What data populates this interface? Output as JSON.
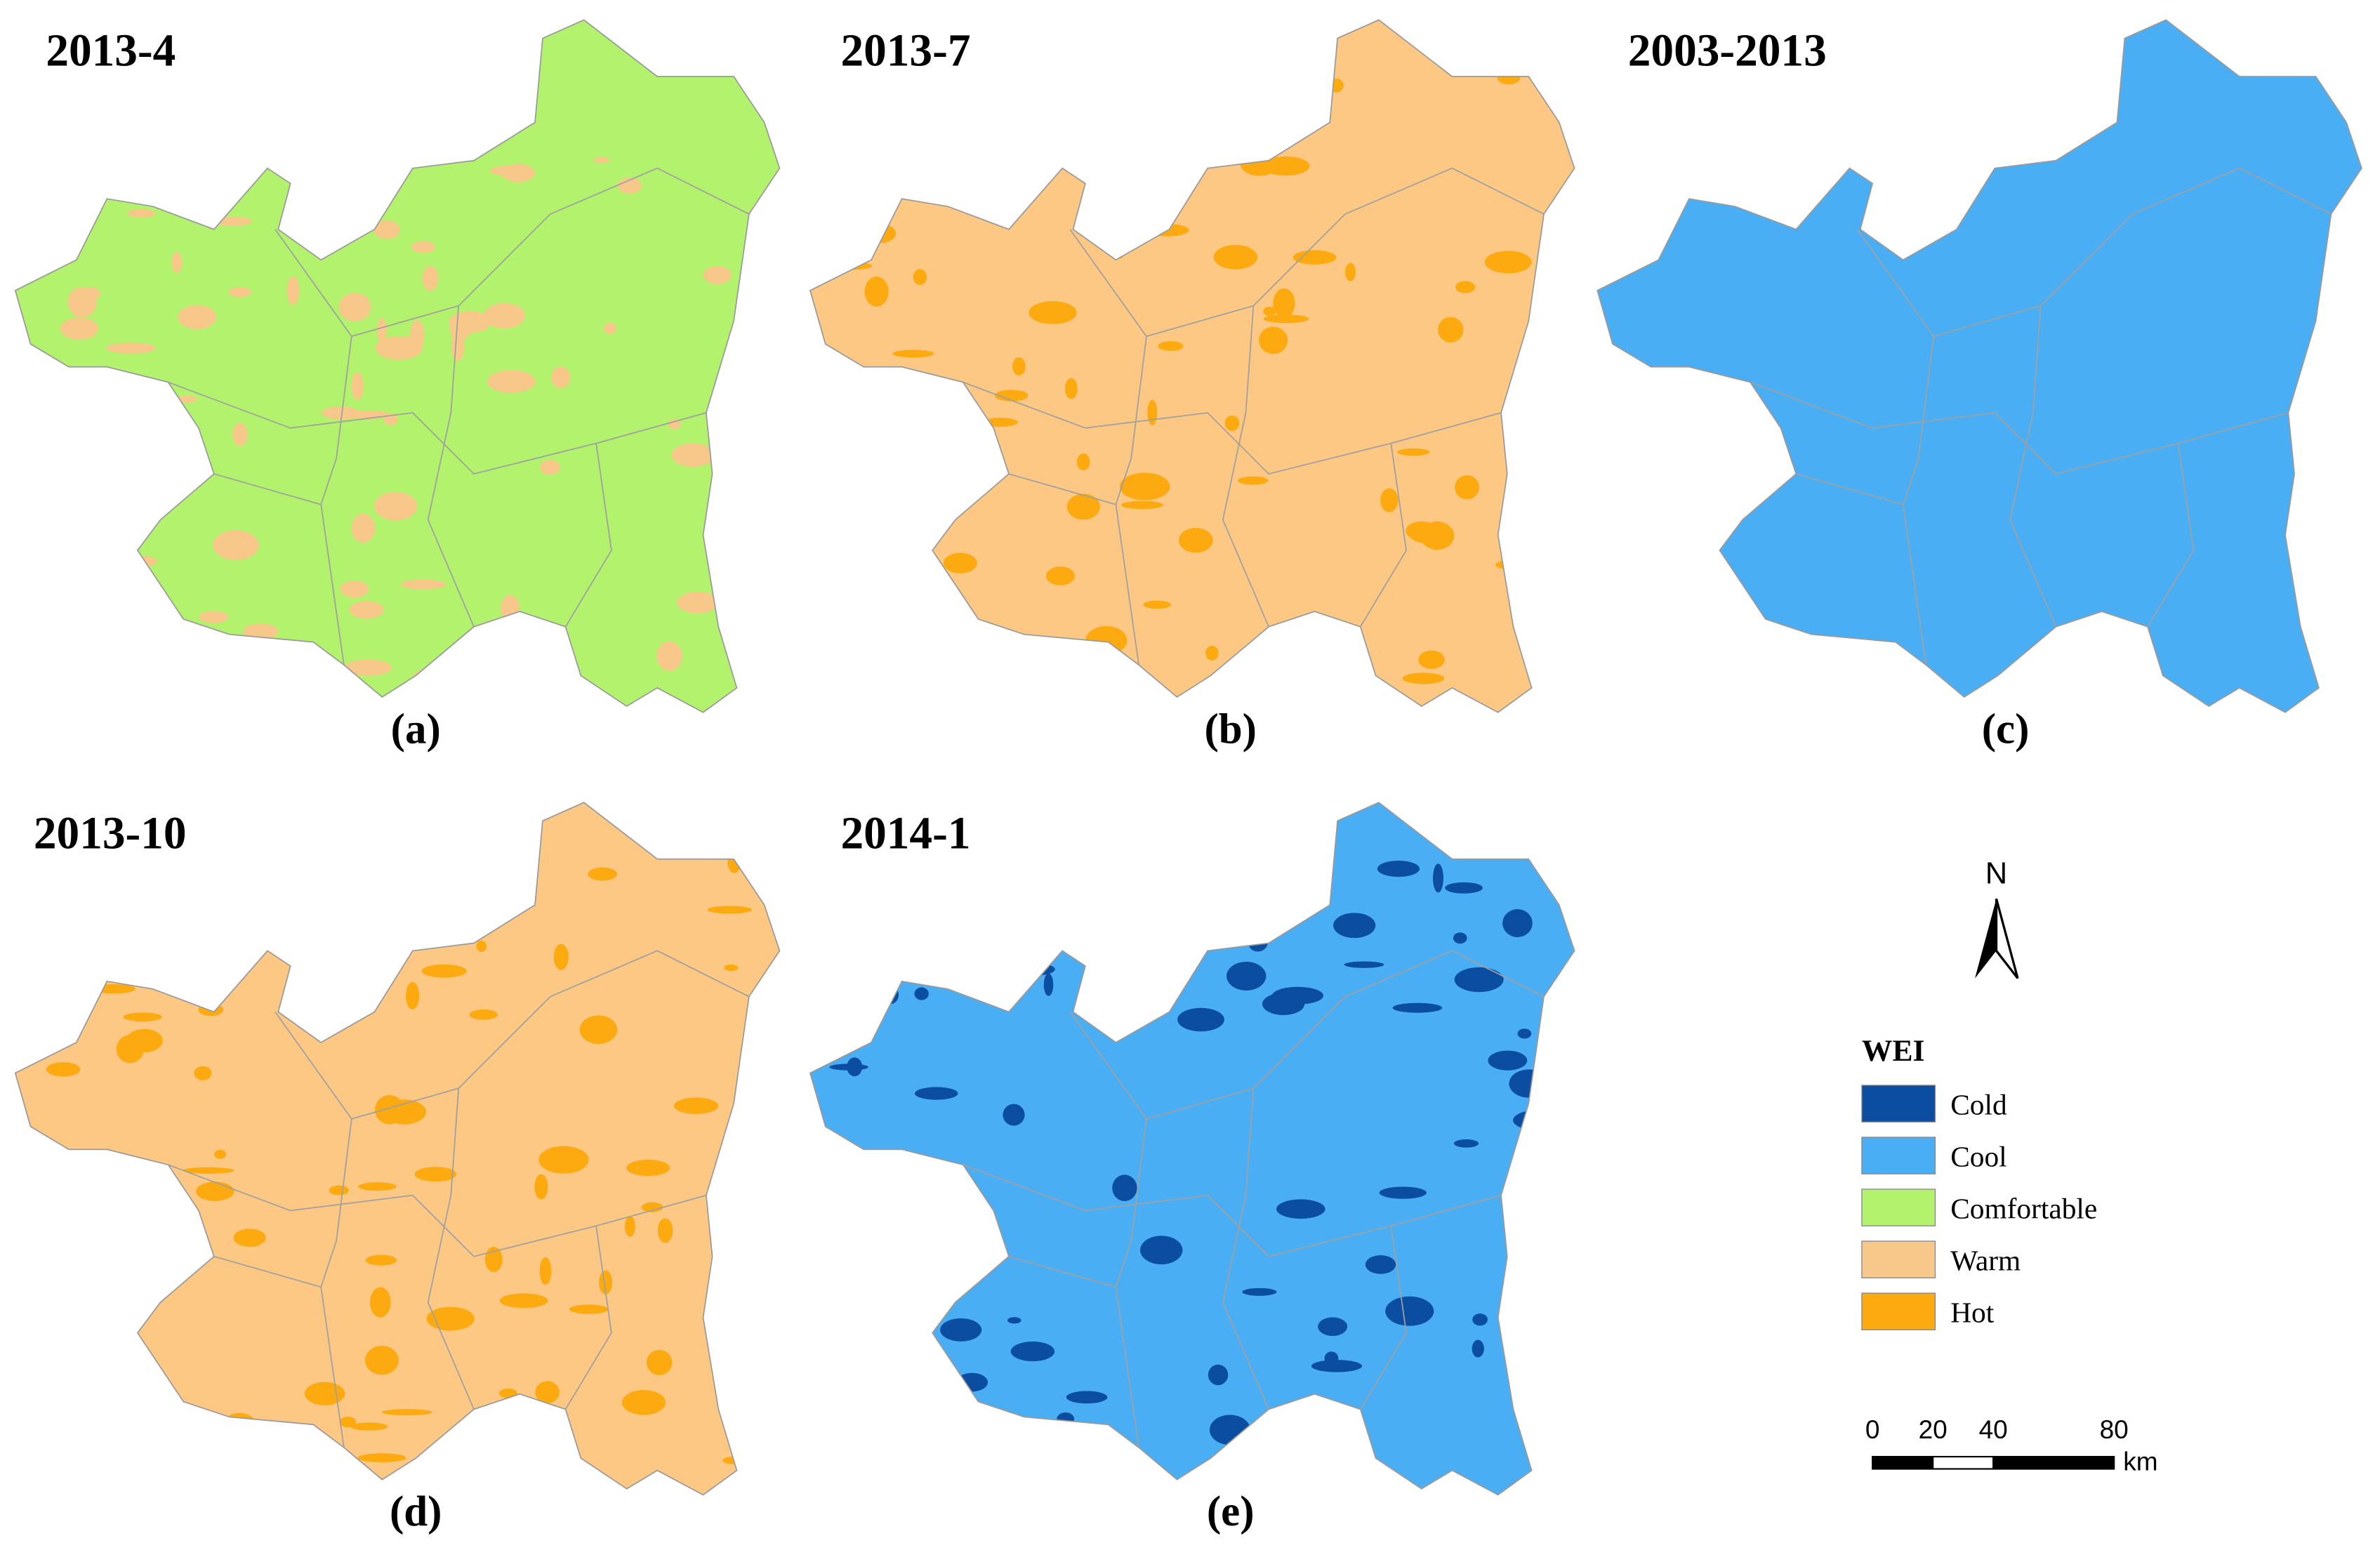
{
  "panels": [
    {
      "title": "2013-4",
      "caption": "(a)",
      "color": "#b3f26d",
      "patch_color": "#f8c88a"
    },
    {
      "title": "2013-7",
      "caption": "(b)",
      "color": "#fcc883",
      "patch_color": "#fcaa10"
    },
    {
      "title": "2003-2013",
      "caption": "(c)",
      "color": "#4aaef5",
      "patch_color": null
    },
    {
      "title": "2013-10",
      "caption": "(d)",
      "color": "#fcc883",
      "patch_color": "#fcaa10"
    },
    {
      "title": "2014-1",
      "caption": "(e)",
      "color": "#4aaef5",
      "patch_color": "#0b4da0"
    }
  ],
  "north_label": "N",
  "legend": {
    "title": "WEI",
    "items": [
      {
        "label": "Cold",
        "color": "#0b4da0"
      },
      {
        "label": "Cool",
        "color": "#4aaef5"
      },
      {
        "label": "Comfortable",
        "color": "#b3f26d"
      },
      {
        "label": "Warm",
        "color": "#f8c88a"
      },
      {
        "label": "Hot",
        "color": "#fcaa10"
      }
    ]
  },
  "scale_bar": {
    "ticks": [
      0,
      20,
      40,
      80
    ],
    "unit": "km"
  }
}
